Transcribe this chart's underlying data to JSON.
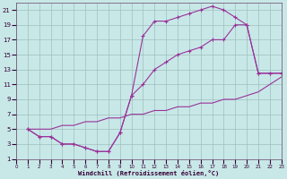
{
  "bg_color": "#c8e8e8",
  "grid_color": "#9fbfbf",
  "line_color": "#993399",
  "xlim": [
    0,
    23
  ],
  "ylim": [
    1,
    22
  ],
  "xticks": [
    0,
    1,
    2,
    3,
    4,
    5,
    6,
    7,
    8,
    9,
    10,
    11,
    12,
    13,
    14,
    15,
    16,
    17,
    18,
    19,
    20,
    21,
    22,
    23
  ],
  "yticks": [
    1,
    3,
    5,
    7,
    9,
    11,
    13,
    15,
    17,
    19,
    21
  ],
  "xlabel": "Windchill (Refroidissement éolien,°C)",
  "curve1_x": [
    1,
    2,
    3,
    4,
    5,
    6,
    7,
    8,
    9,
    10,
    11,
    12,
    13,
    14,
    15,
    16,
    17,
    18,
    19,
    20,
    21,
    22,
    23
  ],
  "curve1_y": [
    5,
    4,
    4,
    3,
    3,
    2.5,
    2,
    2,
    4.5,
    9.5,
    17.5,
    19.5,
    19.5,
    20,
    20.5,
    21,
    21.5,
    21,
    20,
    19,
    12.5,
    12.5,
    12.5
  ],
  "curve2_x": [
    1,
    2,
    3,
    4,
    5,
    6,
    7,
    8,
    9,
    10,
    11,
    12,
    13,
    14,
    15,
    16,
    17,
    18,
    19,
    20,
    21,
    22,
    23
  ],
  "curve2_y": [
    5,
    4,
    4,
    3,
    3,
    2.5,
    2,
    2,
    4.5,
    9.5,
    11,
    13,
    14,
    15,
    15.5,
    16,
    17,
    17,
    19,
    19,
    12.5,
    12.5,
    12.5
  ],
  "line3_x": [
    1,
    2,
    3,
    4,
    5,
    6,
    7,
    8,
    9,
    10,
    11,
    12,
    13,
    14,
    15,
    16,
    17,
    18,
    19,
    20,
    21,
    22,
    23
  ],
  "line3_y": [
    5,
    5,
    5,
    5.5,
    5.5,
    6,
    6,
    6.5,
    6.5,
    7,
    7,
    7.5,
    7.5,
    8,
    8,
    8.5,
    8.5,
    9,
    9,
    9.5,
    10,
    11,
    12
  ]
}
